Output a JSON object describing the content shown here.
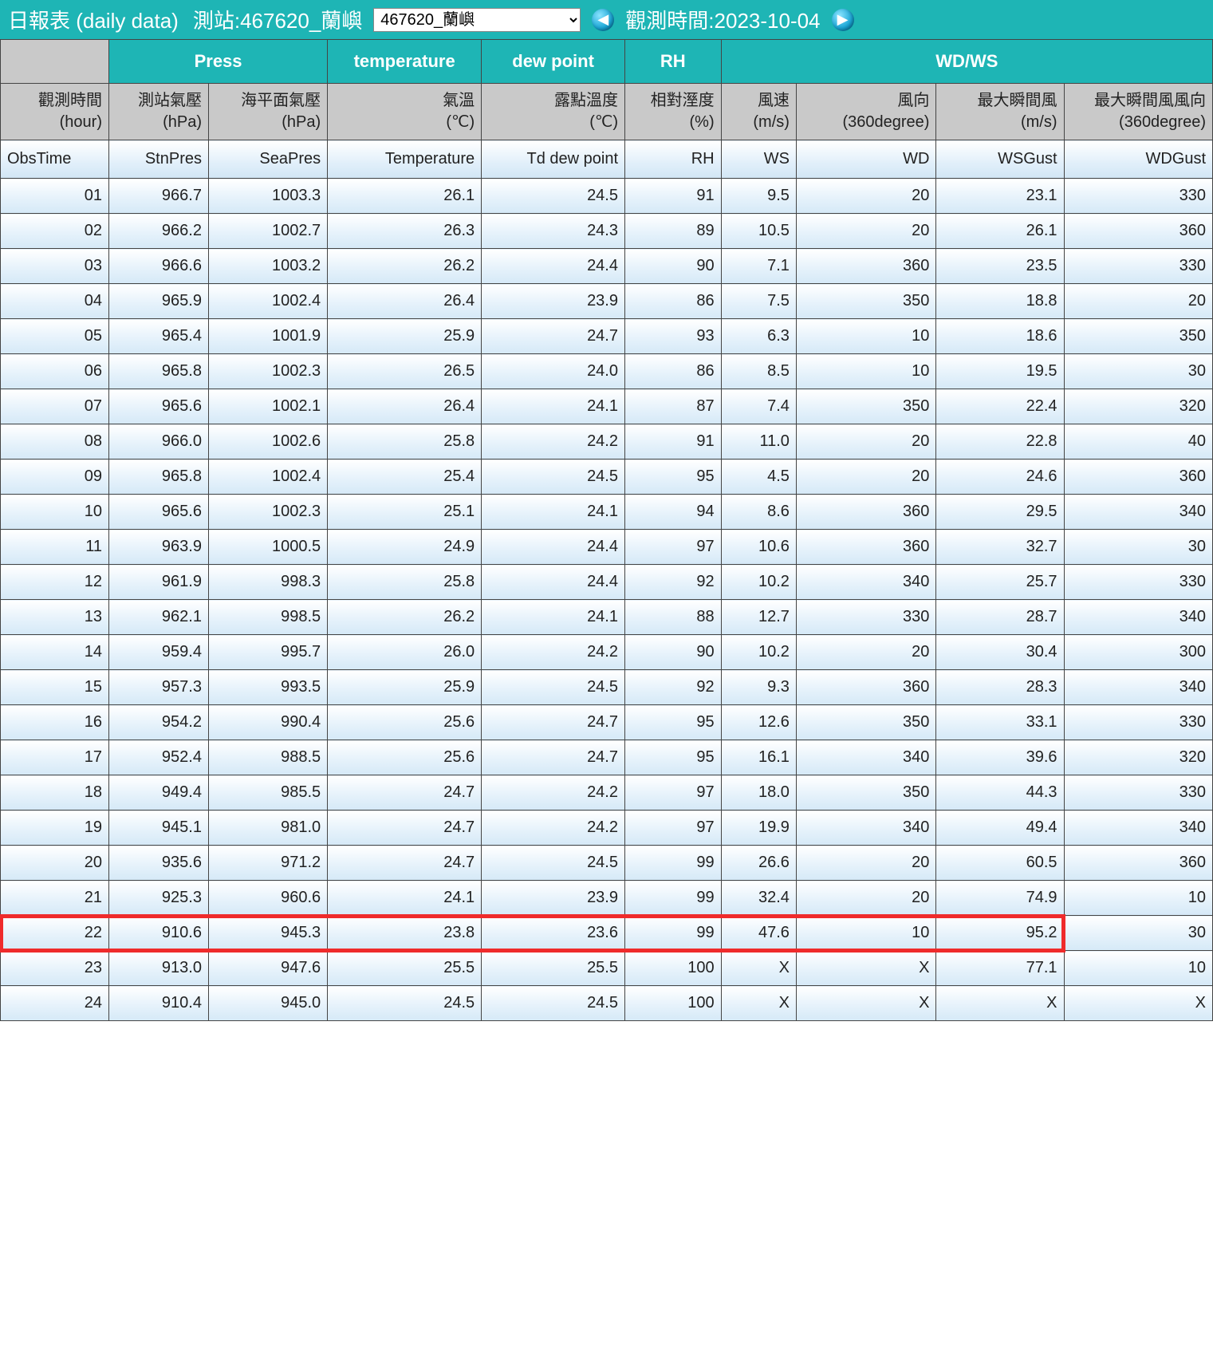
{
  "header": {
    "title": "日報表 (daily data)",
    "station_label": "測站:467620_蘭嶼",
    "station_select_value": "467620_蘭嶼",
    "obs_time_label": "觀測時間:2023-10-04"
  },
  "columns": {
    "groups": {
      "press": "Press",
      "temperature": "temperature",
      "dewpoint": "dew point",
      "rh": "RH",
      "wdws": "WD/WS"
    },
    "sub": {
      "obstime_l1": "觀測時間",
      "obstime_l2": "(hour)",
      "stnpres_l1": "測站氣壓",
      "stnpres_l2": "(hPa)",
      "seapres_l1": "海平面氣壓",
      "seapres_l2": "(hPa)",
      "temp_l1": "氣溫",
      "temp_l2": "(℃)",
      "td_l1": "露點溫度",
      "td_l2": "(℃)",
      "rh_l1": "相對溼度",
      "rh_l2": "(%)",
      "ws_l1": "風速",
      "ws_l2": "(m/s)",
      "wd_l1": "風向",
      "wd_l2": "(360degree)",
      "wsg_l1": "最大瞬間風",
      "wsg_l2": "(m/s)",
      "wdg_l1": "最大瞬間風風向",
      "wdg_l2": "(360degree)"
    },
    "code": {
      "obstime": "ObsTime",
      "stnpres": "StnPres",
      "seapres": "SeaPres",
      "temp": "Temperature",
      "td": "Td dew point",
      "rh": "RH",
      "ws": "WS",
      "wd": "WD",
      "wsg": "WSGust",
      "wdg": "WDGust"
    }
  },
  "highlight_hour": "22",
  "highlight_cols": 9,
  "rows": [
    {
      "h": "01",
      "stn": "966.7",
      "sea": "1003.3",
      "t": "26.1",
      "td": "24.5",
      "rh": "91",
      "ws": "9.5",
      "wd": "20",
      "wsg": "23.1",
      "wdg": "330"
    },
    {
      "h": "02",
      "stn": "966.2",
      "sea": "1002.7",
      "t": "26.3",
      "td": "24.3",
      "rh": "89",
      "ws": "10.5",
      "wd": "20",
      "wsg": "26.1",
      "wdg": "360"
    },
    {
      "h": "03",
      "stn": "966.6",
      "sea": "1003.2",
      "t": "26.2",
      "td": "24.4",
      "rh": "90",
      "ws": "7.1",
      "wd": "360",
      "wsg": "23.5",
      "wdg": "330"
    },
    {
      "h": "04",
      "stn": "965.9",
      "sea": "1002.4",
      "t": "26.4",
      "td": "23.9",
      "rh": "86",
      "ws": "7.5",
      "wd": "350",
      "wsg": "18.8",
      "wdg": "20"
    },
    {
      "h": "05",
      "stn": "965.4",
      "sea": "1001.9",
      "t": "25.9",
      "td": "24.7",
      "rh": "93",
      "ws": "6.3",
      "wd": "10",
      "wsg": "18.6",
      "wdg": "350"
    },
    {
      "h": "06",
      "stn": "965.8",
      "sea": "1002.3",
      "t": "26.5",
      "td": "24.0",
      "rh": "86",
      "ws": "8.5",
      "wd": "10",
      "wsg": "19.5",
      "wdg": "30"
    },
    {
      "h": "07",
      "stn": "965.6",
      "sea": "1002.1",
      "t": "26.4",
      "td": "24.1",
      "rh": "87",
      "ws": "7.4",
      "wd": "350",
      "wsg": "22.4",
      "wdg": "320"
    },
    {
      "h": "08",
      "stn": "966.0",
      "sea": "1002.6",
      "t": "25.8",
      "td": "24.2",
      "rh": "91",
      "ws": "11.0",
      "wd": "20",
      "wsg": "22.8",
      "wdg": "40"
    },
    {
      "h": "09",
      "stn": "965.8",
      "sea": "1002.4",
      "t": "25.4",
      "td": "24.5",
      "rh": "95",
      "ws": "4.5",
      "wd": "20",
      "wsg": "24.6",
      "wdg": "360"
    },
    {
      "h": "10",
      "stn": "965.6",
      "sea": "1002.3",
      "t": "25.1",
      "td": "24.1",
      "rh": "94",
      "ws": "8.6",
      "wd": "360",
      "wsg": "29.5",
      "wdg": "340"
    },
    {
      "h": "11",
      "stn": "963.9",
      "sea": "1000.5",
      "t": "24.9",
      "td": "24.4",
      "rh": "97",
      "ws": "10.6",
      "wd": "360",
      "wsg": "32.7",
      "wdg": "30"
    },
    {
      "h": "12",
      "stn": "961.9",
      "sea": "998.3",
      "t": "25.8",
      "td": "24.4",
      "rh": "92",
      "ws": "10.2",
      "wd": "340",
      "wsg": "25.7",
      "wdg": "330"
    },
    {
      "h": "13",
      "stn": "962.1",
      "sea": "998.5",
      "t": "26.2",
      "td": "24.1",
      "rh": "88",
      "ws": "12.7",
      "wd": "330",
      "wsg": "28.7",
      "wdg": "340"
    },
    {
      "h": "14",
      "stn": "959.4",
      "sea": "995.7",
      "t": "26.0",
      "td": "24.2",
      "rh": "90",
      "ws": "10.2",
      "wd": "20",
      "wsg": "30.4",
      "wdg": "300"
    },
    {
      "h": "15",
      "stn": "957.3",
      "sea": "993.5",
      "t": "25.9",
      "td": "24.5",
      "rh": "92",
      "ws": "9.3",
      "wd": "360",
      "wsg": "28.3",
      "wdg": "340"
    },
    {
      "h": "16",
      "stn": "954.2",
      "sea": "990.4",
      "t": "25.6",
      "td": "24.7",
      "rh": "95",
      "ws": "12.6",
      "wd": "350",
      "wsg": "33.1",
      "wdg": "330"
    },
    {
      "h": "17",
      "stn": "952.4",
      "sea": "988.5",
      "t": "25.6",
      "td": "24.7",
      "rh": "95",
      "ws": "16.1",
      "wd": "340",
      "wsg": "39.6",
      "wdg": "320"
    },
    {
      "h": "18",
      "stn": "949.4",
      "sea": "985.5",
      "t": "24.7",
      "td": "24.2",
      "rh": "97",
      "ws": "18.0",
      "wd": "350",
      "wsg": "44.3",
      "wdg": "330"
    },
    {
      "h": "19",
      "stn": "945.1",
      "sea": "981.0",
      "t": "24.7",
      "td": "24.2",
      "rh": "97",
      "ws": "19.9",
      "wd": "340",
      "wsg": "49.4",
      "wdg": "340"
    },
    {
      "h": "20",
      "stn": "935.6",
      "sea": "971.2",
      "t": "24.7",
      "td": "24.5",
      "rh": "99",
      "ws": "26.6",
      "wd": "20",
      "wsg": "60.5",
      "wdg": "360"
    },
    {
      "h": "21",
      "stn": "925.3",
      "sea": "960.6",
      "t": "24.1",
      "td": "23.9",
      "rh": "99",
      "ws": "32.4",
      "wd": "20",
      "wsg": "74.9",
      "wdg": "10"
    },
    {
      "h": "22",
      "stn": "910.6",
      "sea": "945.3",
      "t": "23.8",
      "td": "23.6",
      "rh": "99",
      "ws": "47.6",
      "wd": "10",
      "wsg": "95.2",
      "wdg": "30"
    },
    {
      "h": "23",
      "stn": "913.0",
      "sea": "947.6",
      "t": "25.5",
      "td": "25.5",
      "rh": "100",
      "ws": "X",
      "wd": "X",
      "wsg": "77.1",
      "wdg": "10"
    },
    {
      "h": "24",
      "stn": "910.4",
      "sea": "945.0",
      "t": "24.5",
      "td": "24.5",
      "rh": "100",
      "ws": "X",
      "wd": "X",
      "wsg": "X",
      "wdg": "X"
    }
  ]
}
